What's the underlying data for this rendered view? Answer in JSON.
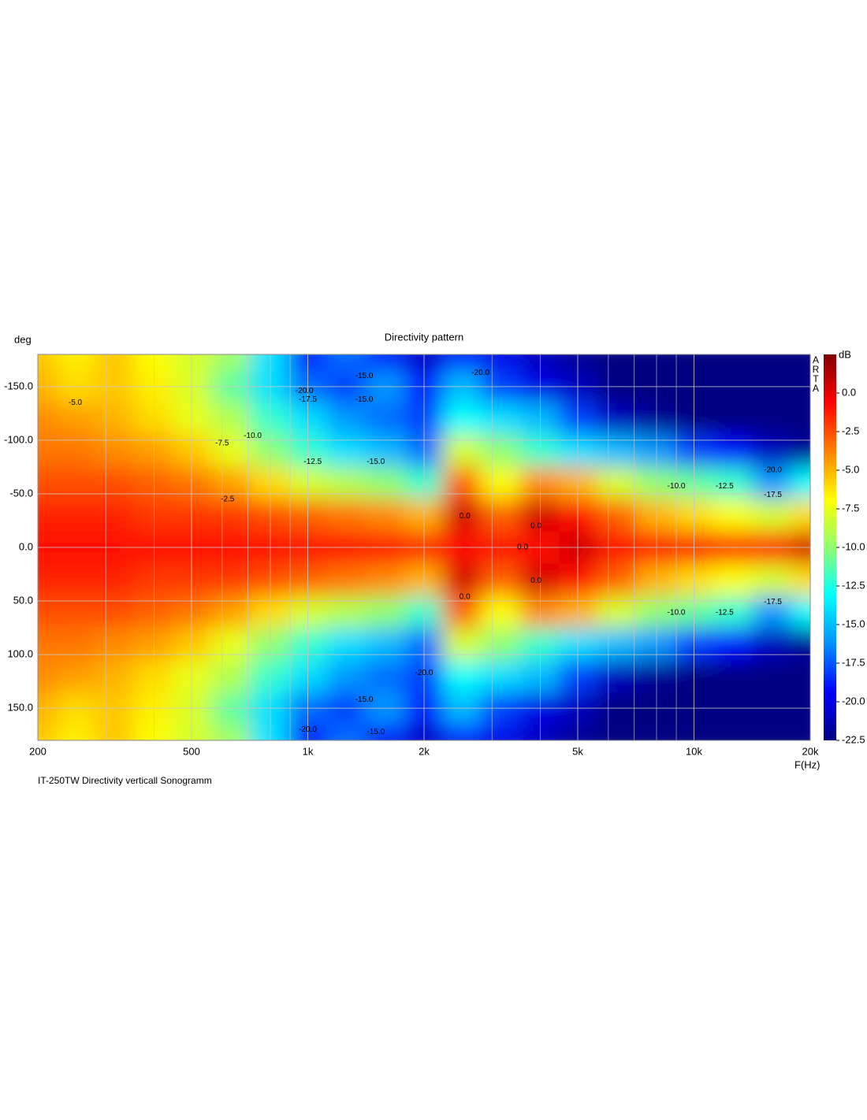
{
  "chart_data": {
    "type": "heatmap",
    "title": "Directivity pattern",
    "y_label": "deg",
    "x_label": "F(Hz)",
    "colorbar_label": "dB",
    "watermark": "ARTA",
    "footer": "IT-250TW  Directivity verticall Sonogramm",
    "x_scale": "log",
    "xlim": [
      200,
      20000
    ],
    "xticks": [
      200,
      500,
      {
        "value": 1000,
        "label": "1k"
      },
      {
        "value": 2000,
        "label": "2k"
      },
      {
        "value": 5000,
        "label": "5k"
      },
      {
        "value": 10000,
        "label": "10k"
      },
      {
        "value": 20000,
        "label": "20k"
      }
    ],
    "xminor": [
      300,
      400,
      600,
      700,
      800,
      900,
      3000,
      4000,
      6000,
      7000,
      8000,
      9000
    ],
    "ylim": [
      -180,
      180
    ],
    "yticks": [
      {
        "value": -150,
        "label": "-150.0"
      },
      {
        "value": -100,
        "label": "-100.0"
      },
      {
        "value": -50,
        "label": "-50.0"
      },
      {
        "value": 0,
        "label": "0.0"
      },
      {
        "value": 50,
        "label": "50.0"
      },
      {
        "value": 100,
        "label": "100.0"
      },
      {
        "value": 150,
        "label": "150.0"
      }
    ],
    "zlim": [
      -22.5,
      2.5
    ],
    "zticks": [
      {
        "value": 0,
        "label": "0.0"
      },
      {
        "value": -2.5,
        "label": "-2.5"
      },
      {
        "value": -5,
        "label": "-5.0"
      },
      {
        "value": -7.5,
        "label": "-7.5"
      },
      {
        "value": -10,
        "label": "-10.0"
      },
      {
        "value": -12.5,
        "label": "-12.5"
      },
      {
        "value": -15,
        "label": "-15.0"
      },
      {
        "value": -17.5,
        "label": "-17.5"
      },
      {
        "value": -20,
        "label": "-20.0"
      },
      {
        "value": -22.5,
        "label": "-22.5"
      }
    ],
    "colors": [
      "#000080",
      "#0000ff",
      "#0090ff",
      "#00ffff",
      "#90ff70",
      "#ffff00",
      "#ff8000",
      "#ff0000",
      "#800000"
    ],
    "grid": true,
    "x": [
      200,
      250,
      315,
      400,
      500,
      630,
      800,
      1000,
      1250,
      1600,
      2000,
      2500,
      3150,
      4000,
      5000,
      6300,
      8000,
      10000,
      12500,
      16000,
      20000
    ],
    "y": [
      -180,
      -150,
      -120,
      -90,
      -60,
      -30,
      0,
      30,
      60,
      90,
      120,
      150,
      180
    ],
    "values": [
      [
        -5.5,
        -6.5,
        -5.5,
        -7,
        -8,
        -9.5,
        -14,
        -19,
        -17,
        -19,
        -21,
        -19,
        -20,
        -21,
        -22,
        -22.5,
        -22.5,
        -22.5,
        -22.5,
        -22.5,
        -22.5
      ],
      [
        -5,
        -6,
        -5.5,
        -6.5,
        -8,
        -11,
        -14,
        -17,
        -18,
        -16,
        -19,
        -15,
        -18,
        -20,
        -21,
        -22.5,
        -22.5,
        -22.5,
        -22.5,
        -22.5,
        -22.5
      ],
      [
        -4,
        -4.5,
        -5,
        -6,
        -7.5,
        -9,
        -12,
        -14,
        -16,
        -17,
        -18,
        -13,
        -14,
        -15,
        -18,
        -21,
        -22,
        -22.5,
        -22.5,
        -22.5,
        -22.5
      ],
      [
        -3.5,
        -3.5,
        -4,
        -4.5,
        -5.5,
        -7.5,
        -10,
        -12,
        -14,
        -15,
        -17,
        -8,
        -10,
        -12,
        -14,
        -15,
        -16,
        -18,
        -19,
        -21,
        -22
      ],
      [
        -2.5,
        -2.5,
        -2.5,
        -3,
        -3.5,
        -4.5,
        -6,
        -8,
        -9,
        -10,
        -12,
        -3,
        -7,
        -4,
        -5,
        -8,
        -10,
        -11,
        -12,
        -16,
        -13
      ],
      [
        -1.5,
        -1.5,
        -1.5,
        -2,
        -2,
        -2,
        -2.5,
        -3,
        -3.5,
        -4,
        -5,
        0.5,
        -3,
        0.5,
        -1,
        -3,
        -5,
        -6,
        -7,
        -8,
        -6
      ],
      [
        -1,
        -1,
        -1,
        -1,
        -1,
        -1,
        -1,
        -1,
        -1,
        -1,
        -1.5,
        -1,
        -1,
        -1,
        0.5,
        -1,
        -1,
        -1,
        -1.5,
        -1,
        0.5
      ],
      [
        -1.5,
        -1.5,
        -1.5,
        -2,
        -2,
        -2,
        -2.5,
        -3,
        -3.5,
        -4,
        -5,
        0.5,
        -3,
        0.5,
        -1,
        -3,
        -5,
        -6,
        -7,
        -8,
        -6
      ],
      [
        -2.5,
        -2.5,
        -2.5,
        -3,
        -3.5,
        -4.5,
        -6,
        -8,
        -9,
        -10,
        -12,
        -3,
        -7,
        -4,
        -5,
        -8,
        -10,
        -11,
        -12,
        -16,
        -13
      ],
      [
        -3.5,
        -3.5,
        -4,
        -4.5,
        -5.5,
        -7.5,
        -10,
        -12,
        -14,
        -15,
        -17,
        -8,
        -10,
        -12,
        -14,
        -15,
        -16,
        -18,
        -19,
        -21,
        -22
      ],
      [
        -4,
        -4.5,
        -5,
        -6,
        -7.5,
        -9,
        -12,
        -14,
        -16,
        -17,
        -18,
        -13,
        -14,
        -15,
        -18,
        -21,
        -22,
        -22.5,
        -22.5,
        -22.5,
        -22.5
      ],
      [
        -5,
        -6,
        -5.5,
        -6.5,
        -8,
        -11,
        -14,
        -17,
        -18,
        -16,
        -19,
        -15,
        -18,
        -20,
        -21,
        -22.5,
        -22.5,
        -22.5,
        -22.5,
        -22.5,
        -22.5
      ],
      [
        -5.5,
        -6.5,
        -5.5,
        -7,
        -8,
        -9.5,
        -14,
        -19,
        -17,
        -19,
        -21,
        -19,
        -20,
        -21,
        -22,
        -22.5,
        -22.5,
        -22.5,
        -22.5,
        -22.5,
        -22.5
      ]
    ],
    "annotations": [
      {
        "text": "-5.0",
        "x": 250,
        "y": -135
      },
      {
        "text": "-7.5",
        "x": 600,
        "y": -97
      },
      {
        "text": "-10.0",
        "x": 720,
        "y": -104
      },
      {
        "text": "-2.5",
        "x": 620,
        "y": -45
      },
      {
        "text": "-12.5",
        "x": 1030,
        "y": -80
      },
      {
        "text": "-15.0",
        "x": 1500,
        "y": -80
      },
      {
        "text": "-15.0",
        "x": 1400,
        "y": -160
      },
      {
        "text": "-15.0",
        "x": 1400,
        "y": -138
      },
      {
        "text": "-17.5",
        "x": 1000,
        "y": -138
      },
      {
        "text": "-20.0",
        "x": 980,
        "y": -146
      },
      {
        "text": "-20.0",
        "x": 2800,
        "y": -163
      },
      {
        "text": "0.0",
        "x": 2550,
        "y": -29
      },
      {
        "text": "0.0",
        "x": 2550,
        "y": 46
      },
      {
        "text": "0.0",
        "x": 3900,
        "y": -20
      },
      {
        "text": "0.0",
        "x": 3900,
        "y": 31
      },
      {
        "text": "0.0",
        "x": 3600,
        "y": 0
      },
      {
        "text": "-10.0",
        "x": 9000,
        "y": -57
      },
      {
        "text": "-12.5",
        "x": 12000,
        "y": -57
      },
      {
        "text": "-17.5",
        "x": 16000,
        "y": -49
      },
      {
        "text": "-20.0",
        "x": 16000,
        "y": -72
      },
      {
        "text": "-10.0",
        "x": 9000,
        "y": 61
      },
      {
        "text": "-12.5",
        "x": 12000,
        "y": 61
      },
      {
        "text": "-17.5",
        "x": 16000,
        "y": 51
      },
      {
        "text": "-20.0",
        "x": 2000,
        "y": 117
      },
      {
        "text": "-15.0",
        "x": 1400,
        "y": 142
      },
      {
        "text": "-20.0",
        "x": 1000,
        "y": 170
      },
      {
        "text": "-15.0",
        "x": 1500,
        "y": 172
      }
    ]
  }
}
